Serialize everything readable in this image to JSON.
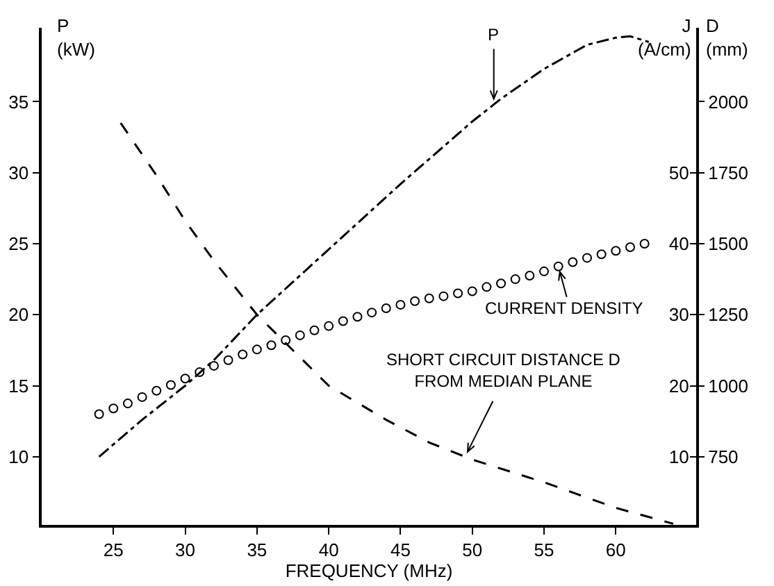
{
  "chart_data": {
    "type": "line",
    "xlabel": "FREQUENCY (MHz)",
    "ylabel": "P (kW)",
    "y2label": "J (A/cm)",
    "y3label": "D (mm)",
    "xlim": [
      20,
      65.6
    ],
    "xticks": [
      25,
      30,
      35,
      40,
      45,
      50,
      55,
      60
    ],
    "ylim": [
      5.2,
      40.2
    ],
    "yticks": [
      10,
      15,
      20,
      25,
      30,
      35
    ],
    "y2lim": [
      0.4,
      70.4
    ],
    "y2ticks": [
      10,
      20,
      30,
      40,
      50
    ],
    "y3lim": [
      510,
      2260
    ],
    "y3ticks": [
      750,
      1000,
      1250,
      1500,
      1750,
      2000
    ],
    "series": [
      {
        "color": "#000000",
        "line_style": "dashdot",
        "marker": "none",
        "x": [
          24,
          27,
          30,
          32,
          35,
          40,
          45,
          50,
          52,
          55,
          58,
          60,
          61,
          62.3
        ],
        "values": [
          10,
          12.6,
          15,
          16.8,
          20,
          24.6,
          29.2,
          33.6,
          35.2,
          37.3,
          39.0,
          39.5,
          39.6,
          39.2
        ]
      },
      {
        "type": "scatter",
        "color": "#000000",
        "marker": "circle",
        "axis": "y2",
        "x": [
          24,
          25,
          26,
          27,
          28,
          29,
          30,
          31,
          32,
          33,
          34,
          35,
          36,
          37,
          38,
          39,
          40,
          41,
          42,
          43,
          44,
          45,
          46,
          47,
          48,
          49,
          50,
          51,
          52,
          53,
          54,
          55,
          56,
          57,
          58,
          59,
          60,
          61,
          62
        ],
        "values": [
          16,
          16.8,
          17.5,
          18.4,
          19.3,
          20.1,
          21,
          21.9,
          22.8,
          23.6,
          24.4,
          25.1,
          25.7,
          26.4,
          27.1,
          27.8,
          28.4,
          29.1,
          29.7,
          30.3,
          30.9,
          31.4,
          31.9,
          32.3,
          32.6,
          33,
          33.3,
          33.9,
          34.4,
          35,
          35.5,
          36.1,
          36.8,
          37.4,
          38,
          38.5,
          39,
          39.5,
          40
        ]
      },
      {
        "color": "#000000",
        "line_style": "dashed",
        "marker": "none",
        "axis": "y3",
        "x": [
          25.5,
          28,
          30,
          32,
          35,
          38,
          40,
          44,
          47,
          50,
          55,
          60,
          64
        ],
        "values": [
          1925,
          1740,
          1580,
          1440,
          1250,
          1100,
          1000,
          880,
          800,
          740,
          660,
          570,
          514
        ]
      }
    ],
    "annotations": [
      {
        "text": "P",
        "x": 51.5,
        "y": 34.8
      },
      {
        "text": "CURRENT DENSITY",
        "x": 56,
        "y": 23.4
      },
      {
        "text": "SHORT CIRCUIT DISTANCE D\nFROM MEDIAN PLANE",
        "x": 49.5,
        "y": 10
      }
    ]
  }
}
